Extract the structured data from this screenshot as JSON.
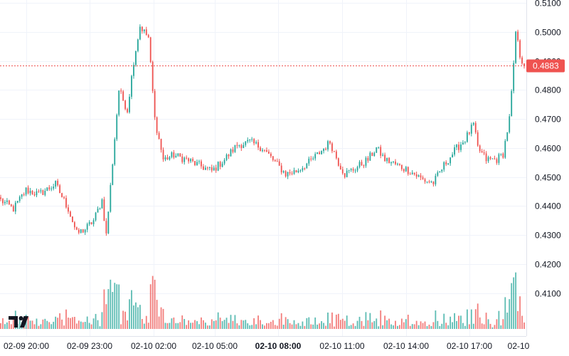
{
  "chart_data": {
    "type": "candlestick",
    "y_ticks": [
      "0.5100",
      "0.5000",
      "0.4900",
      "0.4800",
      "0.4700",
      "0.4600",
      "0.4500",
      "0.4400",
      "0.4300",
      "0.4200",
      "0.4100"
    ],
    "ylim": [
      0.4035,
      0.5105
    ],
    "x_ticks": [
      "02-09 20:00",
      "02-09 23:00",
      "02-10 02:00",
      "02-10 05:00",
      "02-10 08:00",
      "02-10 11:00",
      "02-10 14:00",
      "02-10 17:00",
      "02-10"
    ],
    "x_tick_bold_index": 4,
    "current_price": "0.4883",
    "up_color": "#26a69a",
    "down_color": "#ef5350",
    "price_line_color": "#ef5350",
    "logo": "tradingview-logo",
    "anchors": [
      {
        "t": 0,
        "p": 0.442
      },
      {
        "t": 6,
        "p": 0.439
      },
      {
        "t": 12,
        "p": 0.4455
      },
      {
        "t": 18,
        "p": 0.444
      },
      {
        "t": 26,
        "p": 0.4475
      },
      {
        "t": 32,
        "p": 0.439
      },
      {
        "t": 36,
        "p": 0.4305
      },
      {
        "t": 40,
        "p": 0.432
      },
      {
        "t": 44,
        "p": 0.435
      },
      {
        "t": 48,
        "p": 0.442
      },
      {
        "t": 50,
        "p": 0.43
      },
      {
        "t": 53,
        "p": 0.455
      },
      {
        "t": 56,
        "p": 0.48
      },
      {
        "t": 60,
        "p": 0.473
      },
      {
        "t": 63,
        "p": 0.49
      },
      {
        "t": 66,
        "p": 0.502
      },
      {
        "t": 70,
        "p": 0.498
      },
      {
        "t": 73,
        "p": 0.47
      },
      {
        "t": 77,
        "p": 0.456
      },
      {
        "t": 82,
        "p": 0.4575
      },
      {
        "t": 88,
        "p": 0.456
      },
      {
        "t": 94,
        "p": 0.454
      },
      {
        "t": 100,
        "p": 0.452
      },
      {
        "t": 106,
        "p": 0.456
      },
      {
        "t": 112,
        "p": 0.461
      },
      {
        "t": 118,
        "p": 0.462
      },
      {
        "t": 124,
        "p": 0.46
      },
      {
        "t": 130,
        "p": 0.455
      },
      {
        "t": 135,
        "p": 0.451
      },
      {
        "t": 140,
        "p": 0.452
      },
      {
        "t": 146,
        "p": 0.455
      },
      {
        "t": 152,
        "p": 0.459
      },
      {
        "t": 156,
        "p": 0.462
      },
      {
        "t": 160,
        "p": 0.455
      },
      {
        "t": 163,
        "p": 0.451
      },
      {
        "t": 168,
        "p": 0.453
      },
      {
        "t": 174,
        "p": 0.456
      },
      {
        "t": 178,
        "p": 0.46
      },
      {
        "t": 182,
        "p": 0.456
      },
      {
        "t": 188,
        "p": 0.454
      },
      {
        "t": 194,
        "p": 0.452
      },
      {
        "t": 200,
        "p": 0.449
      },
      {
        "t": 205,
        "p": 0.448
      },
      {
        "t": 210,
        "p": 0.454
      },
      {
        "t": 215,
        "p": 0.459
      },
      {
        "t": 220,
        "p": 0.463
      },
      {
        "t": 224,
        "p": 0.468
      },
      {
        "t": 226,
        "p": 0.46
      },
      {
        "t": 230,
        "p": 0.456
      },
      {
        "t": 235,
        "p": 0.456
      },
      {
        "t": 238,
        "p": 0.458
      },
      {
        "t": 241,
        "p": 0.47
      },
      {
        "t": 243,
        "p": 0.488
      },
      {
        "t": 244,
        "p": 0.5
      },
      {
        "t": 246,
        "p": 0.492
      },
      {
        "t": 248,
        "p": 0.4883
      }
    ]
  }
}
